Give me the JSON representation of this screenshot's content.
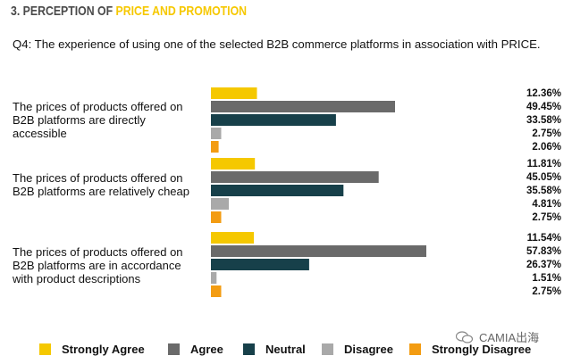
{
  "header": {
    "section_prefix": "3. PERCEPTION OF ",
    "section_highlight": "PRICE AND PROMOTION"
  },
  "question": "Q4: The experience of using one of the selected B2B commerce platforms in association with PRICE.",
  "watermark": "CAMIA出海",
  "colors": {
    "strongly_agree": "#f5c800",
    "agree": "#6a6a6a",
    "neutral": "#17404a",
    "disagree": "#a9a9a9",
    "strongly_disagree": "#f39c12"
  },
  "chart_data": {
    "type": "bar",
    "orientation": "horizontal",
    "categories": [
      "The prices of products offered on B2B platforms are directly accessible",
      "The prices of products offered on B2B platforms are relatively cheap",
      "The prices of products offered on B2B platforms are in accordance with product descriptions"
    ],
    "series": [
      {
        "name": "Strongly Agree",
        "values": [
          12.36,
          11.81,
          11.54
        ],
        "labels": [
          "12.36%",
          "11.81%",
          "11.54%"
        ],
        "icon": "square"
      },
      {
        "name": "Agree",
        "values": [
          49.45,
          45.05,
          57.83
        ],
        "labels": [
          "49.45%",
          "45.05%",
          "57.83%"
        ],
        "icon": "square"
      },
      {
        "name": "Neutral",
        "values": [
          33.58,
          35.58,
          26.37
        ],
        "labels": [
          "33.58%",
          "35.58%",
          "26.37%"
        ],
        "icon": "square"
      },
      {
        "name": "Disagree",
        "values": [
          2.75,
          4.81,
          1.51
        ],
        "labels": [
          "2.75%",
          "4.81%",
          "1.51%"
        ],
        "icon": "square"
      },
      {
        "name": "Strongly Disagree",
        "values": [
          2.06,
          2.75,
          2.75
        ],
        "labels": [
          "2.06%",
          "2.75%",
          "2.75%"
        ],
        "icon": "square"
      }
    ],
    "xlim": [
      0,
      60
    ],
    "legend": "bottom",
    "grid": false
  }
}
